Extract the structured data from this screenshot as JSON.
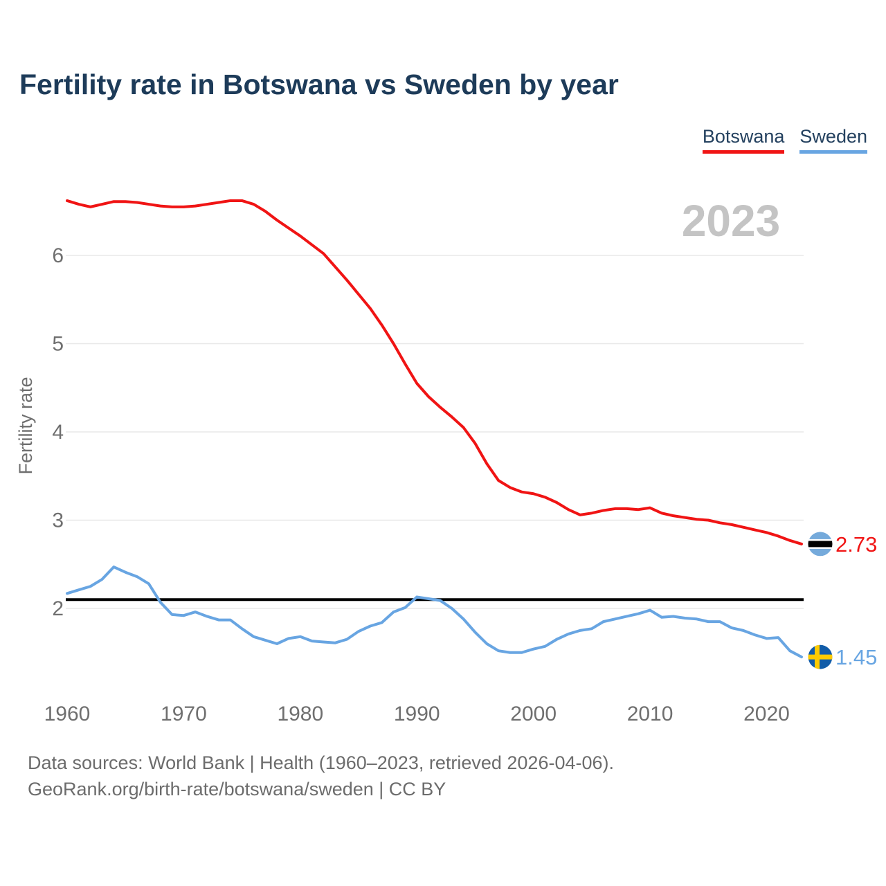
{
  "title": "Fertility rate in Botswana vs Sweden by year",
  "watermark": "2023",
  "legend": [
    {
      "label": "Botswana",
      "color": "#f01414"
    },
    {
      "label": "Sweden",
      "color": "#68a5e2"
    }
  ],
  "footer": {
    "line1": "Data sources: World Bank | Health (1960–2023, retrieved 2026-04-06).",
    "line2": "GeoRank.org/birth-rate/botswana/sweden | CC BY"
  },
  "chart_data": {
    "type": "line",
    "title": "Fertility rate in Botswana vs Sweden by year",
    "xlabel": "",
    "ylabel": "Fertility rate",
    "x_start": 1960,
    "x_end": 2023,
    "xticks": [
      1960,
      1970,
      1980,
      1990,
      2000,
      2010,
      2020
    ],
    "yticks": [
      2,
      3,
      4,
      5,
      6
    ],
    "ylim": [
      1.3,
      6.8
    ],
    "grid": "horizontal",
    "legend_position": "top-right",
    "reference_line": {
      "value": 2.1,
      "color": "#000000"
    },
    "series": [
      {
        "name": "Botswana",
        "color": "#f01414",
        "end_label": "2.73",
        "flag": "botswana-flag-icon",
        "flag_colors": {
          "circle": "#75aadb",
          "band": "#000000",
          "band_edge": "#ffffff"
        },
        "values": [
          6.62,
          6.58,
          6.55,
          6.58,
          6.61,
          6.61,
          6.6,
          6.58,
          6.56,
          6.55,
          6.55,
          6.56,
          6.58,
          6.6,
          6.62,
          6.62,
          6.58,
          6.5,
          6.4,
          6.31,
          6.22,
          6.12,
          6.02,
          5.87,
          5.72,
          5.56,
          5.4,
          5.21,
          5.0,
          4.77,
          4.55,
          4.4,
          4.28,
          4.17,
          4.05,
          3.87,
          3.64,
          3.45,
          3.37,
          3.32,
          3.3,
          3.26,
          3.2,
          3.12,
          3.06,
          3.08,
          3.11,
          3.13,
          3.13,
          3.12,
          3.14,
          3.08,
          3.05,
          3.03,
          3.01,
          3.0,
          2.97,
          2.95,
          2.92,
          2.89,
          2.86,
          2.82,
          2.77,
          2.73
        ]
      },
      {
        "name": "Sweden",
        "color": "#68a5e2",
        "end_label": "1.45",
        "flag": "sweden-flag-icon",
        "flag_colors": {
          "circle": "#115ca8",
          "cross": "#fecb00"
        },
        "values": [
          2.17,
          2.21,
          2.25,
          2.33,
          2.47,
          2.41,
          2.36,
          2.28,
          2.07,
          1.93,
          1.92,
          1.96,
          1.91,
          1.87,
          1.87,
          1.77,
          1.68,
          1.64,
          1.6,
          1.66,
          1.68,
          1.63,
          1.62,
          1.61,
          1.65,
          1.74,
          1.8,
          1.84,
          1.96,
          2.01,
          2.13,
          2.11,
          2.09,
          2.0,
          1.88,
          1.73,
          1.6,
          1.52,
          1.5,
          1.5,
          1.54,
          1.57,
          1.65,
          1.71,
          1.75,
          1.77,
          1.85,
          1.88,
          1.91,
          1.94,
          1.98,
          1.9,
          1.91,
          1.89,
          1.88,
          1.85,
          1.85,
          1.78,
          1.75,
          1.7,
          1.66,
          1.67,
          1.52,
          1.45
        ]
      }
    ]
  }
}
